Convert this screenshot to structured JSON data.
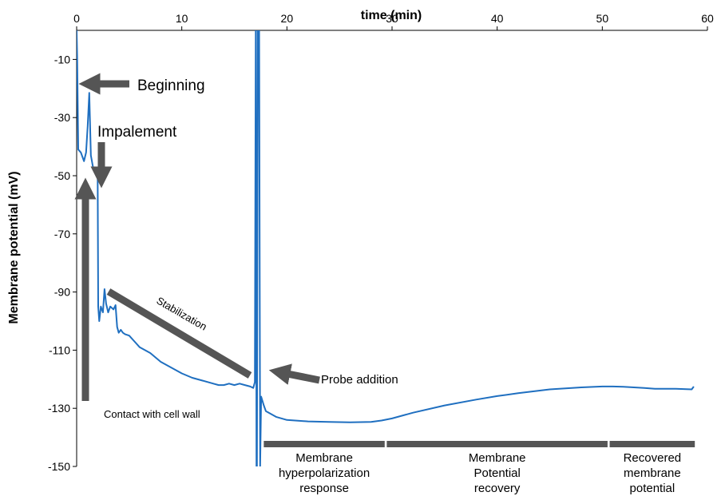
{
  "chart_data": {
    "type": "line",
    "title": "",
    "xlabel": "time (min)",
    "ylabel": "Membrane potential (mV)",
    "xlim": [
      0,
      60
    ],
    "ylim": [
      -150,
      0
    ],
    "x_ticks": [
      0,
      10,
      20,
      30,
      40,
      50,
      60
    ],
    "y_ticks": [
      -10,
      -30,
      -50,
      -70,
      -90,
      -110,
      -130,
      -150
    ],
    "series_color": "#1F6FC0",
    "annotation_color": "#555555",
    "grid": false,
    "series": [
      {
        "values": [
          [
            0.0,
            0
          ],
          [
            0.05,
            -10
          ],
          [
            0.15,
            -41
          ],
          [
            0.4,
            -42
          ],
          [
            0.7,
            -45
          ],
          [
            0.9,
            -42
          ],
          [
            1.05,
            -33
          ],
          [
            1.2,
            -21.5
          ],
          [
            1.35,
            -43
          ],
          [
            1.6,
            -48
          ],
          [
            1.9,
            -49
          ],
          [
            2.0,
            -49.5
          ],
          [
            2.05,
            -95
          ],
          [
            2.15,
            -100
          ],
          [
            2.3,
            -95
          ],
          [
            2.5,
            -97
          ],
          [
            2.65,
            -89
          ],
          [
            2.8,
            -94
          ],
          [
            3.0,
            -97
          ],
          [
            3.2,
            -95
          ],
          [
            3.5,
            -96
          ],
          [
            3.7,
            -94.5
          ],
          [
            3.85,
            -102
          ],
          [
            4.0,
            -104
          ],
          [
            4.2,
            -103
          ],
          [
            4.4,
            -104
          ],
          [
            4.6,
            -104.5
          ],
          [
            5.0,
            -105
          ],
          [
            5.5,
            -107
          ],
          [
            6.0,
            -109
          ],
          [
            7.0,
            -111
          ],
          [
            8.0,
            -114
          ],
          [
            9.0,
            -116
          ],
          [
            10.0,
            -118
          ],
          [
            11.0,
            -119.5
          ],
          [
            12.0,
            -120.5
          ],
          [
            13.0,
            -121.5
          ],
          [
            13.5,
            -122
          ],
          [
            14.0,
            -122
          ],
          [
            14.5,
            -121.5
          ],
          [
            15.0,
            -122
          ],
          [
            15.5,
            -121.5
          ],
          [
            16.0,
            -122
          ],
          [
            16.5,
            -122.5
          ],
          [
            16.8,
            -123
          ],
          [
            16.95,
            -121
          ],
          [
            17.05,
            20
          ],
          [
            17.1,
            -150
          ],
          [
            17.15,
            -150
          ],
          [
            17.25,
            20
          ],
          [
            17.35,
            20
          ],
          [
            17.45,
            -150
          ],
          [
            17.55,
            -126
          ],
          [
            17.8,
            -129
          ],
          [
            18.0,
            -131
          ],
          [
            19.0,
            -133
          ],
          [
            20.0,
            -134
          ],
          [
            22.0,
            -134.5
          ],
          [
            24.0,
            -134.7
          ],
          [
            26.0,
            -134.8
          ],
          [
            28.0,
            -134.7
          ],
          [
            29.0,
            -134.2
          ],
          [
            30.0,
            -133.5
          ],
          [
            32.0,
            -131.5
          ],
          [
            35.0,
            -129
          ],
          [
            38.0,
            -127
          ],
          [
            40.0,
            -125.8
          ],
          [
            42.0,
            -124.8
          ],
          [
            45.0,
            -123.5
          ],
          [
            48.0,
            -122.8
          ],
          [
            50.0,
            -122.5
          ],
          [
            51.0,
            -122.5
          ],
          [
            52.0,
            -122.6
          ],
          [
            54.0,
            -123
          ],
          [
            55.0,
            -123.3
          ],
          [
            57.0,
            -123.3
          ],
          [
            58.5,
            -123.5
          ],
          [
            58.7,
            -122.5
          ]
        ]
      }
    ],
    "annotations": {
      "beginning": "Beginning",
      "impalement": "Impalement",
      "contact": "Contact with cell wall",
      "stabilization": "Stabilization",
      "probe_addition": "Probe addition"
    },
    "phases": [
      {
        "lines": [
          "Membrane",
          "hyperpolarization",
          "response"
        ],
        "x_start": 17.8,
        "x_end": 29.3
      },
      {
        "lines": [
          "Membrane",
          "Potential",
          "recovery"
        ],
        "x_start": 29.5,
        "x_end": 50.5
      },
      {
        "lines": [
          "Recovered",
          "membrane",
          "potential"
        ],
        "x_start": 50.7,
        "x_end": 58.8
      }
    ]
  }
}
